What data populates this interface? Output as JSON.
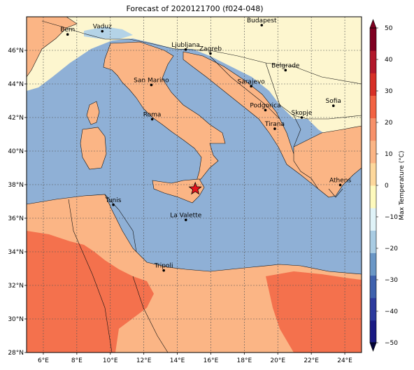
{
  "title": "Forecast of 2020121700 (f024-048)",
  "map": {
    "lon_range": [
      5,
      25
    ],
    "lat_range": [
      28,
      48
    ],
    "lon_ticks": [
      "6°E",
      "8°E",
      "10°E",
      "12°E",
      "14°E",
      "16°E",
      "18°E",
      "20°E",
      "22°E",
      "24°E"
    ],
    "lat_ticks": [
      "28°N",
      "30°N",
      "32°N",
      "34°N",
      "36°N",
      "38°N",
      "40°N",
      "42°N",
      "44°N",
      "46°N"
    ],
    "sea_color": "#8fb0d6",
    "colors": {
      "lt10": "#b4d3e7",
      "b0_10": "#fdf6cf",
      "b10_20": "#fbb585",
      "b20_30": "#f4714d"
    },
    "cities": [
      {
        "name": "Bern",
        "lon": 7.45,
        "lat": 46.95
      },
      {
        "name": "Vaduz",
        "lon": 9.52,
        "lat": 47.14
      },
      {
        "name": "Budapest",
        "lon": 19.04,
        "lat": 47.5
      },
      {
        "name": "Ljubljana",
        "lon": 14.5,
        "lat": 46.05
      },
      {
        "name": "Zagreb",
        "lon": 15.98,
        "lat": 45.81
      },
      {
        "name": "Belgrade",
        "lon": 20.46,
        "lat": 44.82
      },
      {
        "name": "San Marino",
        "lon": 12.45,
        "lat": 43.94
      },
      {
        "name": "Sarajevo",
        "lon": 18.41,
        "lat": 43.86
      },
      {
        "name": "Sofia",
        "lon": 23.32,
        "lat": 42.7
      },
      {
        "name": "Podgorica",
        "lon": 19.26,
        "lat": 42.44
      },
      {
        "name": "Roma",
        "lon": 12.5,
        "lat": 41.9
      },
      {
        "name": "Skopje",
        "lon": 21.43,
        "lat": 42.0
      },
      {
        "name": "Tirana",
        "lon": 19.82,
        "lat": 41.33
      },
      {
        "name": "Athens",
        "lon": 23.73,
        "lat": 37.98
      },
      {
        "name": "Tunis",
        "lon": 10.18,
        "lat": 36.8
      },
      {
        "name": "La Valette",
        "lon": 14.51,
        "lat": 35.9
      },
      {
        "name": "Tripoli",
        "lon": 13.19,
        "lat": 32.89
      }
    ],
    "marker": {
      "lon": 15.07,
      "lat": 37.75,
      "color": "#e8121b"
    }
  },
  "colorbar": {
    "label": "Max Temperature (°C)",
    "min": -50,
    "max": 50,
    "ticks": [
      "50",
      "40",
      "30",
      "20",
      "10",
      "0",
      "−10",
      "−20",
      "−30",
      "−40",
      "−50"
    ],
    "bands": [
      "#1a1a84",
      "#2d3b9e",
      "#3f62ae",
      "#6a97c6",
      "#a9cce3",
      "#e0f3f8",
      "#fefabd",
      "#fdd89c",
      "#fbb585",
      "#f7916a",
      "#f26343",
      "#d73027",
      "#b2182b",
      "#7f0021"
    ]
  }
}
